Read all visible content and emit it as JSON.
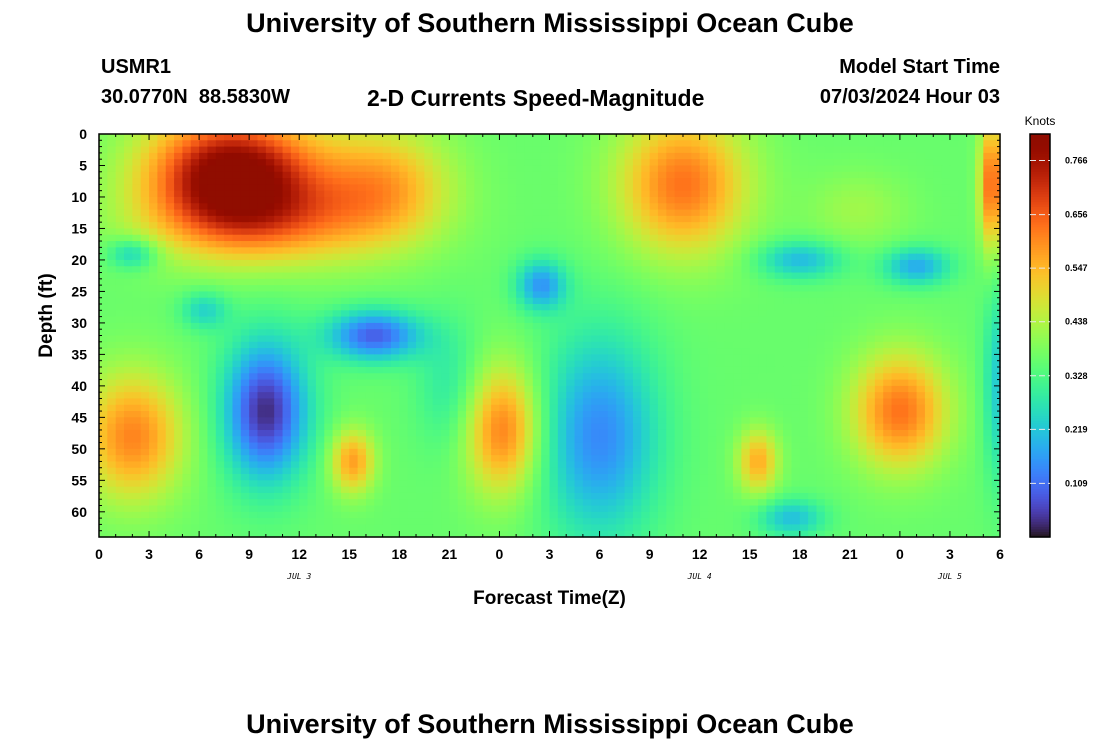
{
  "header": {
    "title": "University of Southern Mississippi Ocean Cube",
    "station": "USMR1",
    "coords": "30.0770N  88.5830W",
    "subtitle": "2-D Currents Speed-Magnitude",
    "model_start_label": "Model Start Time",
    "model_start_value": "07/03/2024 Hour 03"
  },
  "footer": {
    "title": "University of Southern Mississippi Ocean Cube"
  },
  "chart_data": {
    "type": "heatmap",
    "xlabel": "Forecast Time(Z)",
    "ylabel": "Depth (ft)",
    "xlim": [
      0,
      54
    ],
    "ylim": [
      0,
      64
    ],
    "x_ticks": [
      0,
      3,
      6,
      9,
      12,
      15,
      18,
      21,
      24,
      27,
      30,
      33,
      36,
      39,
      42,
      45,
      48,
      51,
      54
    ],
    "x_tick_labels": [
      "0",
      "3",
      "6",
      "9",
      "12",
      "15",
      "18",
      "21",
      "0",
      "3",
      "6",
      "9",
      "12",
      "15",
      "18",
      "21",
      "0",
      "3",
      "6"
    ],
    "date_labels": [
      {
        "text": "JUL 3",
        "x": 12
      },
      {
        "text": "JUL 4",
        "x": 36
      },
      {
        "text": "JUL 5",
        "x": 51
      }
    ],
    "y_ticks": [
      0,
      5,
      10,
      15,
      20,
      25,
      30,
      35,
      40,
      45,
      50,
      55,
      60
    ],
    "colorbar": {
      "unit": "Knots",
      "min": 0.0,
      "max": 0.82,
      "tick_values": [
        0.766,
        0.656,
        0.547,
        0.438,
        0.328,
        0.219,
        0.109
      ],
      "tick_labels": [
        "0.766",
        "0.656",
        "0.547",
        "0.438",
        "0.328",
        "0.219",
        "0.109"
      ]
    },
    "background_speed": 0.36,
    "features": [
      {
        "x": 8,
        "y": 6,
        "sx": 5,
        "sy": 9,
        "a": 0.46
      },
      {
        "x": 10,
        "y": 14,
        "sx": 7,
        "sy": 7,
        "a": 0.2
      },
      {
        "x": 17,
        "y": 8,
        "sx": 4,
        "sy": 9,
        "a": 0.2
      },
      {
        "x": 2,
        "y": 48,
        "sx": 3,
        "sy": 10,
        "a": 0.25
      },
      {
        "x": 10,
        "y": 44,
        "sx": 2.5,
        "sy": 11,
        "a": -0.33
      },
      {
        "x": 16.5,
        "y": 32,
        "sx": 2.8,
        "sy": 4,
        "a": -0.27
      },
      {
        "x": 2,
        "y": 19,
        "sx": 1.5,
        "sy": 2.5,
        "a": -0.14
      },
      {
        "x": 6.3,
        "y": 28,
        "sx": 1.4,
        "sy": 3,
        "a": -0.12
      },
      {
        "x": 15.2,
        "y": 52,
        "sx": 1.3,
        "sy": 5,
        "a": 0.22
      },
      {
        "x": 24.2,
        "y": 47,
        "sx": 2.2,
        "sy": 10,
        "a": 0.26
      },
      {
        "x": 26.5,
        "y": 24,
        "sx": 1.5,
        "sy": 4,
        "a": -0.2
      },
      {
        "x": 30,
        "y": 48,
        "sx": 3.5,
        "sy": 16,
        "a": -0.22
      },
      {
        "x": 35,
        "y": 8,
        "sx": 3.8,
        "sy": 11,
        "a": 0.27
      },
      {
        "x": 39.5,
        "y": 52,
        "sx": 1.2,
        "sy": 5,
        "a": 0.2
      },
      {
        "x": 42,
        "y": 20,
        "sx": 2.5,
        "sy": 3,
        "a": -0.16
      },
      {
        "x": 49,
        "y": 21,
        "sx": 2,
        "sy": 3,
        "a": -0.18
      },
      {
        "x": 48,
        "y": 44,
        "sx": 2.8,
        "sy": 9,
        "a": 0.27
      },
      {
        "x": 53.5,
        "y": 8,
        "sx": 0.7,
        "sy": 10,
        "a": 0.3
      },
      {
        "x": 45.5,
        "y": 12,
        "sx": 3,
        "sy": 6,
        "a": 0.06
      },
      {
        "x": 41.5,
        "y": 61,
        "sx": 2,
        "sy": 3,
        "a": -0.15
      },
      {
        "x": 54,
        "y": 40,
        "sx": 1,
        "sy": 15,
        "a": -0.14
      },
      {
        "x": 21,
        "y": 40,
        "sx": 2,
        "sy": 10,
        "a": -0.08
      }
    ]
  }
}
